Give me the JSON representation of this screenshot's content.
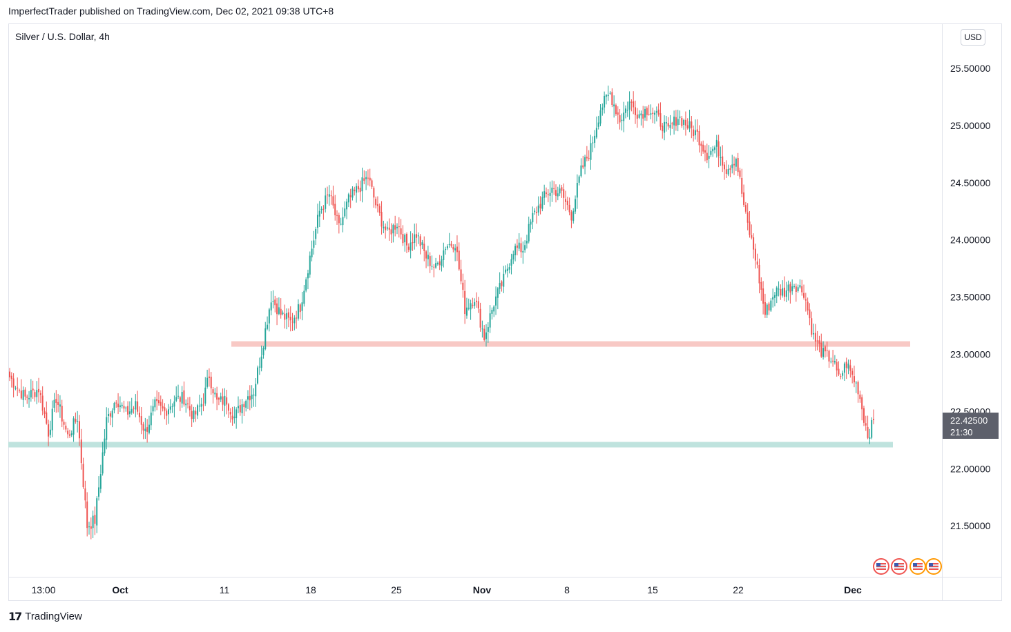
{
  "header": {
    "published_text": "ImperfectTrader published on TradingView.com, Dec 02, 2021 09:38 UTC+8"
  },
  "chart": {
    "symbol_title": "Silver / U.S. Dollar, 4h",
    "currency_label": "USD",
    "last_price_label": "22.42500",
    "countdown_label": "21:30"
  },
  "footer": {
    "logo_mark": "17",
    "brand": "TradingView"
  },
  "colors": {
    "up": "#26a69a",
    "down": "#ef5350",
    "resistance_zone": "#f8c9c5",
    "support_zone": "#bfe3de",
    "price_badge": "#5d606b",
    "grid": "#f0f3fa"
  },
  "chart_data": {
    "type": "candlestick",
    "title": "Silver / U.S. Dollar, 4h",
    "ylim": [
      21.0,
      25.9
    ],
    "y_ticks": [
      25.5,
      25.0,
      24.5,
      24.0,
      23.5,
      23.0,
      22.5,
      22.0,
      21.5
    ],
    "y_tick_labels": [
      "25.50000",
      "25.00000",
      "24.50000",
      "24.00000",
      "23.50000",
      "23.00000",
      "22.50000",
      "22.00000",
      "21.50000"
    ],
    "x_ticks": [
      "13:00",
      "Oct",
      "11",
      "18",
      "25",
      "Nov",
      "8",
      "15",
      "22",
      "Dec"
    ],
    "x_tick_bold": [
      false,
      true,
      false,
      false,
      false,
      true,
      false,
      false,
      false,
      true
    ],
    "last_price": 22.425,
    "horizontal_zones": [
      {
        "name": "resistance",
        "price": 23.09,
        "color": "#f8c9c5"
      },
      {
        "name": "support",
        "price": 22.21,
        "color": "#bfe3de"
      }
    ],
    "anchors": [
      [
        0,
        22.8
      ],
      [
        8,
        22.62
      ],
      [
        15,
        22.7
      ],
      [
        20,
        22.32
      ],
      [
        24,
        22.62
      ],
      [
        30,
        22.28
      ],
      [
        35,
        22.45
      ],
      [
        40,
        21.5
      ],
      [
        44,
        21.55
      ],
      [
        50,
        22.42
      ],
      [
        55,
        22.62
      ],
      [
        60,
        22.48
      ],
      [
        65,
        22.55
      ],
      [
        70,
        22.32
      ],
      [
        75,
        22.55
      ],
      [
        80,
        22.5
      ],
      [
        85,
        22.6
      ],
      [
        90,
        22.62
      ],
      [
        95,
        22.45
      ],
      [
        100,
        22.6
      ],
      [
        103,
        22.82
      ],
      [
        107,
        22.58
      ],
      [
        112,
        22.6
      ],
      [
        116,
        22.45
      ],
      [
        122,
        22.62
      ],
      [
        126,
        22.68
      ],
      [
        130,
        23.02
      ],
      [
        135,
        23.5
      ],
      [
        140,
        23.35
      ],
      [
        145,
        23.28
      ],
      [
        150,
        23.42
      ],
      [
        155,
        23.85
      ],
      [
        160,
        24.25
      ],
      [
        165,
        24.4
      ],
      [
        170,
        24.1
      ],
      [
        175,
        24.35
      ],
      [
        180,
        24.45
      ],
      [
        185,
        24.55
      ],
      [
        190,
        24.25
      ],
      [
        195,
        24.05
      ],
      [
        200,
        24.15
      ],
      [
        205,
        23.95
      ],
      [
        210,
        24.05
      ],
      [
        215,
        23.85
      ],
      [
        220,
        23.75
      ],
      [
        225,
        23.95
      ],
      [
        230,
        23.98
      ],
      [
        235,
        23.4
      ],
      [
        240,
        23.5
      ],
      [
        245,
        23.15
      ],
      [
        250,
        23.45
      ],
      [
        255,
        23.65
      ],
      [
        260,
        23.92
      ],
      [
        265,
        23.92
      ],
      [
        270,
        24.2
      ],
      [
        275,
        24.35
      ],
      [
        280,
        24.45
      ],
      [
        285,
        24.4
      ],
      [
        290,
        24.22
      ],
      [
        295,
        24.6
      ],
      [
        300,
        24.8
      ],
      [
        305,
        25.15
      ],
      [
        310,
        25.28
      ],
      [
        315,
        25.05
      ],
      [
        320,
        25.2
      ],
      [
        325,
        25.1
      ],
      [
        330,
        25.15
      ],
      [
        335,
        25.05
      ],
      [
        340,
        24.95
      ],
      [
        345,
        25.08
      ],
      [
        350,
        25.0
      ],
      [
        355,
        24.92
      ],
      [
        360,
        24.75
      ],
      [
        365,
        24.82
      ],
      [
        370,
        24.62
      ],
      [
        375,
        24.72
      ],
      [
        380,
        24.2
      ],
      [
        385,
        23.85
      ],
      [
        390,
        23.35
      ],
      [
        395,
        23.55
      ],
      [
        400,
        23.55
      ],
      [
        405,
        23.62
      ],
      [
        410,
        23.55
      ],
      [
        415,
        23.15
      ],
      [
        420,
        23.0
      ],
      [
        425,
        22.95
      ],
      [
        428,
        22.78
      ],
      [
        432,
        22.92
      ],
      [
        438,
        22.7
      ],
      [
        441,
        22.45
      ],
      [
        443,
        22.3
      ],
      [
        446,
        22.4
      ]
    ]
  }
}
